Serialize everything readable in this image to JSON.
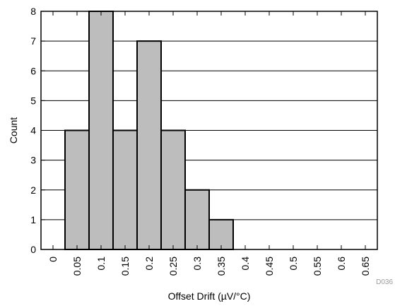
{
  "chart_data": {
    "type": "bar",
    "title": "",
    "xlabel": "Offset Drift (µV/°C)",
    "ylabel": "Count",
    "x_ticks": [
      "0",
      "0.05",
      "0.1",
      "0.15",
      "0.2",
      "0.25",
      "0.3",
      "0.35",
      "0.4",
      "0.45",
      "0.5",
      "0.55",
      "0.6",
      "0.65"
    ],
    "categories": [
      "0.05",
      "0.1",
      "0.15",
      "0.2",
      "0.25",
      "0.3",
      "0.35"
    ],
    "values": [
      4,
      8,
      4,
      7,
      4,
      2,
      1
    ],
    "xlim": [
      -0.025,
      0.675
    ],
    "ylim": [
      0,
      8
    ],
    "y_ticks": [
      0,
      1,
      2,
      3,
      4,
      5,
      6,
      7,
      8
    ],
    "grid": "horizontal",
    "bar_color": "#bdbdbd",
    "bar_edge_color": "#000000",
    "figure_code": "D036"
  }
}
